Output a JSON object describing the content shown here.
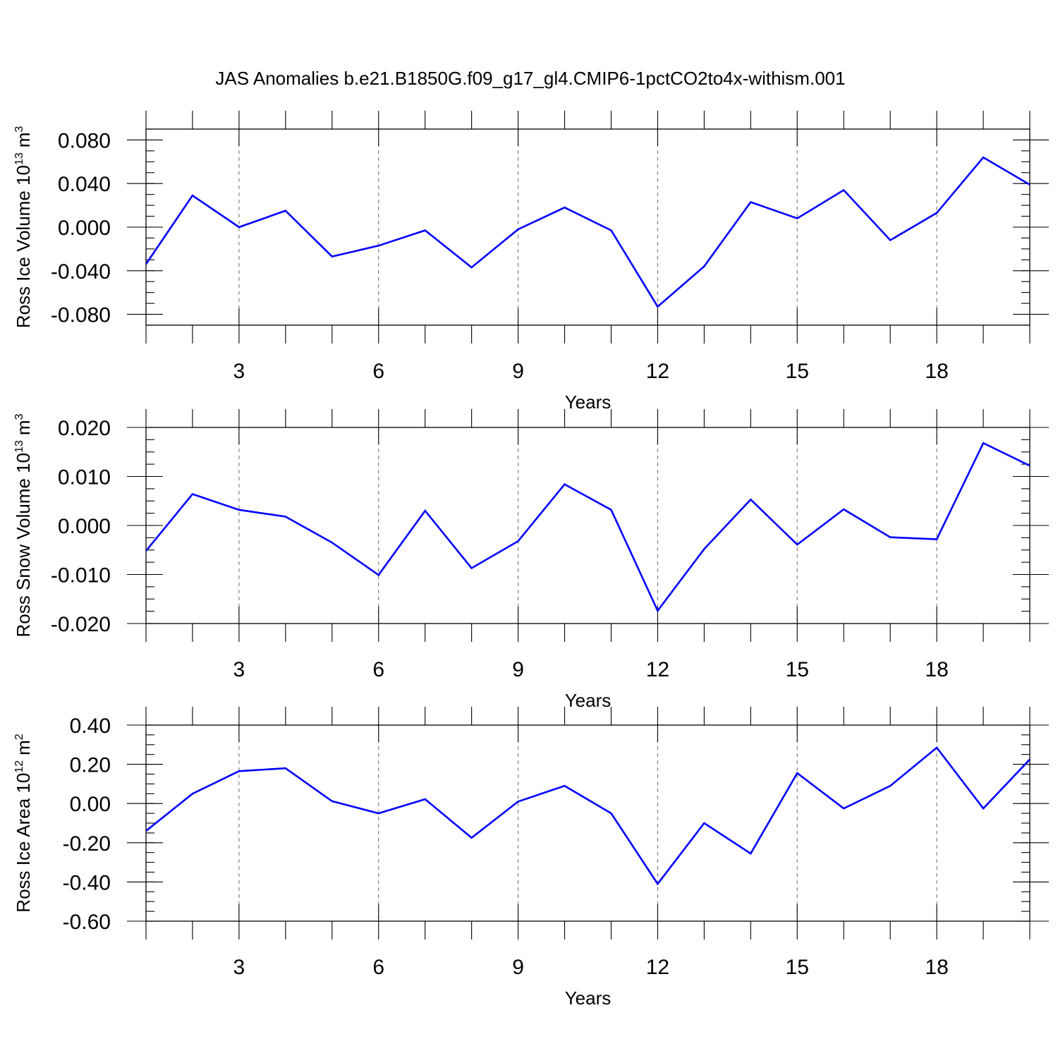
{
  "title": "JAS Anomalies b.e21.B1850G.f09_g17_gl4.CMIP6-1pctCO2to4x-withism.001",
  "series_color": "#0000ff",
  "chart_data": [
    {
      "type": "line",
      "ylabel": "Ross Ice Volume 10",
      "ylabel_sup": "13",
      "ylabel_unit": "m",
      "ylabel_unit_sup": "3",
      "xlabel": "Years",
      "xlim": [
        1,
        20
      ],
      "ylim": [
        -0.09,
        0.09
      ],
      "y_ticks": [
        -0.08,
        -0.04,
        0.0,
        0.04,
        0.08
      ],
      "y_tick_labels": [
        "-0.080",
        "-0.040",
        "0.000",
        "0.040",
        "0.080"
      ],
      "y_minor_step": 0.01,
      "x_ticks": [
        3,
        6,
        9,
        12,
        15,
        18
      ],
      "x_tick_labels": [
        "3",
        "6",
        "9",
        "12",
        "15",
        "18"
      ],
      "x": [
        1,
        2,
        3,
        4,
        5,
        6,
        7,
        8,
        9,
        10,
        11,
        12,
        13,
        14,
        15,
        16,
        17,
        18,
        19,
        20
      ],
      "values": [
        -0.034,
        0.029,
        0.0,
        0.015,
        -0.027,
        -0.017,
        -0.003,
        -0.037,
        -0.002,
        0.018,
        -0.003,
        -0.073,
        -0.036,
        0.023,
        0.008,
        0.034,
        -0.012,
        0.013,
        0.064,
        0.039
      ]
    },
    {
      "type": "line",
      "ylabel": "Ross Snow Volume 10",
      "ylabel_sup": "13",
      "ylabel_unit": "m",
      "ylabel_unit_sup": "3",
      "xlabel": "Years",
      "xlim": [
        1,
        20
      ],
      "ylim": [
        -0.02,
        0.02
      ],
      "y_ticks": [
        -0.02,
        -0.01,
        0.0,
        0.01,
        0.02
      ],
      "y_tick_labels": [
        "-0.020",
        "-0.010",
        "0.000",
        "0.010",
        "0.020"
      ],
      "y_minor_step": 0.0025,
      "x_ticks": [
        3,
        6,
        9,
        12,
        15,
        18
      ],
      "x_tick_labels": [
        "3",
        "6",
        "9",
        "12",
        "15",
        "18"
      ],
      "x": [
        1,
        2,
        3,
        4,
        5,
        6,
        7,
        8,
        9,
        10,
        11,
        12,
        13,
        14,
        15,
        16,
        17,
        18,
        19,
        20
      ],
      "values": [
        -0.0052,
        0.0064,
        0.0032,
        0.0018,
        -0.0035,
        -0.0101,
        0.003,
        -0.0087,
        -0.0032,
        0.0084,
        0.0032,
        -0.0174,
        -0.0048,
        0.0053,
        -0.0039,
        0.0033,
        -0.0024,
        -0.0028,
        0.0168,
        0.0122
      ]
    },
    {
      "type": "line",
      "ylabel": "Ross Ice Area 10",
      "ylabel_sup": "12",
      "ylabel_unit": "m",
      "ylabel_unit_sup": "2",
      "xlabel": "Years",
      "xlim": [
        1,
        20
      ],
      "ylim": [
        -0.6,
        0.4
      ],
      "y_ticks": [
        -0.6,
        -0.4,
        -0.2,
        0.0,
        0.2,
        0.4
      ],
      "y_tick_labels": [
        "-0.60",
        "-0.40",
        "-0.20",
        "0.00",
        "0.20",
        "0.40"
      ],
      "y_minor_step": 0.05,
      "x_ticks": [
        3,
        6,
        9,
        12,
        15,
        18
      ],
      "x_tick_labels": [
        "3",
        "6",
        "9",
        "12",
        "15",
        "18"
      ],
      "x": [
        1,
        2,
        3,
        4,
        5,
        6,
        7,
        8,
        9,
        10,
        11,
        12,
        13,
        14,
        15,
        16,
        17,
        18,
        19,
        20
      ],
      "values": [
        -0.14,
        0.05,
        0.165,
        0.18,
        0.012,
        -0.05,
        0.022,
        -0.175,
        0.01,
        0.09,
        -0.05,
        -0.41,
        -0.1,
        -0.255,
        0.155,
        -0.025,
        0.09,
        0.285,
        -0.025,
        0.225
      ]
    }
  ]
}
